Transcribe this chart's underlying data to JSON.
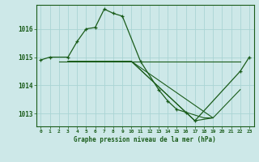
{
  "background_color": "#cde8e8",
  "grid_color": "#aad4d4",
  "line_color": "#1a5c1a",
  "xlabel": "Graphe pression niveau de la mer (hPa)",
  "ylim": [
    1012.55,
    1016.85
  ],
  "yticks": [
    1013,
    1014,
    1015,
    1016
  ],
  "xlim": [
    -0.5,
    23.5
  ],
  "xticks": [
    0,
    1,
    2,
    3,
    4,
    5,
    6,
    7,
    8,
    9,
    10,
    11,
    12,
    13,
    14,
    15,
    16,
    17,
    18,
    19,
    20,
    21,
    22,
    23
  ],
  "main_x": [
    0,
    1,
    3,
    4,
    5,
    6,
    7,
    8,
    9,
    11,
    13,
    14,
    15,
    16,
    17,
    22,
    23
  ],
  "main_y": [
    1014.9,
    1015.0,
    1015.0,
    1015.55,
    1016.0,
    1016.05,
    1016.7,
    1016.55,
    1016.45,
    1014.85,
    1013.85,
    1013.45,
    1013.15,
    1013.05,
    1012.75,
    1014.5,
    1015.0
  ],
  "line2_x": [
    2,
    3,
    10,
    19,
    22
  ],
  "line2_y": [
    1014.85,
    1014.85,
    1014.85,
    1014.85,
    1014.85
  ],
  "line3_x": [
    3,
    10,
    16,
    18,
    19
  ],
  "line3_y": [
    1014.85,
    1014.85,
    1013.05,
    1012.85,
    1012.85
  ],
  "line4_x": [
    3,
    10,
    17,
    19
  ],
  "line4_y": [
    1014.85,
    1014.85,
    1012.75,
    1012.85
  ],
  "line5_x": [
    3,
    10,
    19,
    22
  ],
  "line5_y": [
    1014.85,
    1014.85,
    1012.85,
    1013.85
  ]
}
